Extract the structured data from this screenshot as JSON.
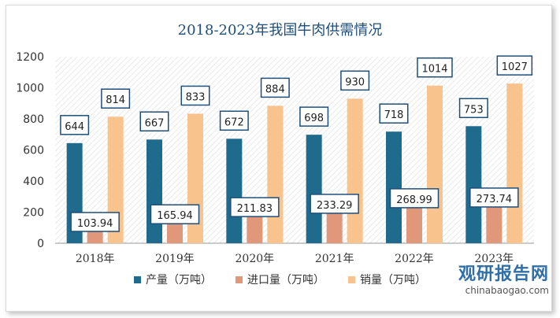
{
  "chart_data": {
    "type": "bar",
    "title": "2018-2023年我国牛肉供需情况",
    "categories": [
      "2018年",
      "2019年",
      "2020年",
      "2021年",
      "2022年",
      "2023年"
    ],
    "series": [
      {
        "name": "产量（万吨）",
        "color": "#1f6b8e",
        "values": [
          644,
          667,
          672,
          698,
          718,
          753
        ],
        "labels": [
          "644",
          "667",
          "672",
          "698",
          "718",
          "753"
        ]
      },
      {
        "name": "进口量（万吨）",
        "color": "#e0977a",
        "values": [
          103.94,
          165.94,
          211.83,
          233.29,
          268.99,
          273.74
        ],
        "labels": [
          "103.94",
          "165.94",
          "211.83",
          "233.29",
          "268.99",
          "273.74"
        ]
      },
      {
        "name": "销量（万吨）",
        "color": "#f9c38e",
        "values": [
          814,
          833,
          884,
          930,
          1014,
          1027
        ],
        "labels": [
          "814",
          "833",
          "884",
          "930",
          "1014",
          "1027"
        ]
      }
    ],
    "ylim": [
      0,
      1200
    ],
    "yticks": [
      "0",
      "200",
      "400",
      "600",
      "800",
      "1000",
      "1200"
    ],
    "legend_position": "bottom",
    "grid": false
  },
  "watermark": {
    "main": "观研报告网",
    "sub": "chinabaogao.com"
  }
}
